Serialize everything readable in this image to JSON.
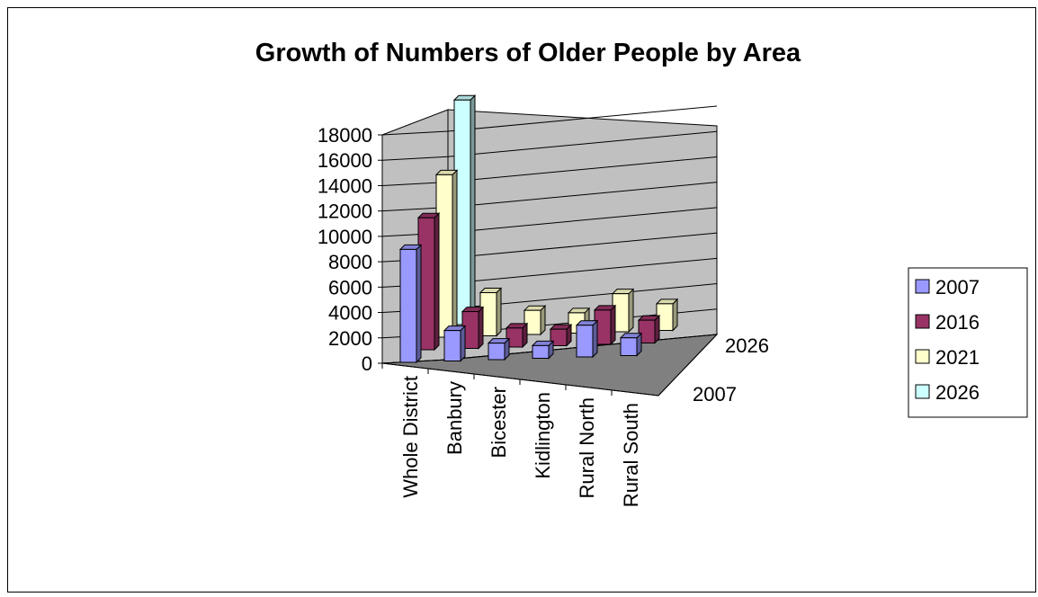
{
  "chart_data": {
    "type": "bar3d",
    "title": "Growth of Numbers of Older People by Area",
    "categories": [
      "Whole District",
      "Banbury",
      "Bicester",
      "Kidlington",
      "Rural North",
      "Rural South"
    ],
    "y_ticks": [
      "0",
      "2000",
      "4000",
      "6000",
      "8000",
      "10000",
      "12000",
      "14000",
      "16000",
      "18000"
    ],
    "ylim": [
      0,
      18000
    ],
    "depth_tick_labels": [
      "2007",
      "2026"
    ],
    "legend_position": "right",
    "grid": true,
    "series": [
      {
        "name": "2007",
        "color": "#9999ff",
        "values": [
          8900,
          2400,
          1300,
          1000,
          2500,
          1400
        ]
      },
      {
        "name": "2016",
        "color": "#993366",
        "values": [
          10400,
          2900,
          1500,
          1300,
          2700,
          1800
        ]
      },
      {
        "name": "2021",
        "color": "#ffffcc",
        "values": [
          12800,
          3400,
          1900,
          1600,
          3000,
          2100
        ]
      },
      {
        "name": "2026",
        "color": "#ccffff",
        "values": [
          17700,
          0,
          0,
          0,
          0,
          0
        ]
      }
    ]
  }
}
